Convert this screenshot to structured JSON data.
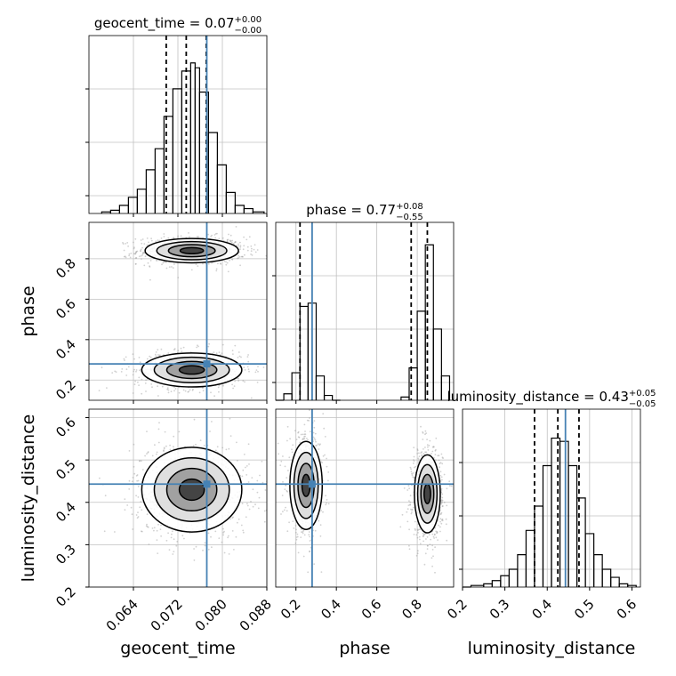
{
  "chart_data": {
    "type": "corner",
    "parameters": [
      "geocent_time",
      "phase",
      "luminosity_distance"
    ],
    "axis_labels": [
      "geocent_time",
      "phase",
      "luminosity_distance"
    ],
    "ranges": {
      "geocent_time": [
        0.056,
        0.088
      ],
      "phase": [
        0.1,
        0.98
      ],
      "luminosity_distance": [
        0.2,
        0.62
      ]
    },
    "ticks": {
      "geocent_time": [
        "0.064",
        "0.072",
        "0.080",
        "0.088"
      ],
      "phase_x": [
        "0.2",
        "0.4",
        "0.6",
        "0.8"
      ],
      "phase_y": [
        "0.2",
        "0.4",
        "0.6",
        "0.8"
      ],
      "luminosity_distance_x": [
        "0.2",
        "0.3",
        "0.4",
        "0.5",
        "0.6"
      ],
      "luminosity_distance_y": [
        "0.2",
        "0.3",
        "0.4",
        "0.5",
        "0.6"
      ]
    },
    "truths": {
      "geocent_time": 0.0772,
      "phase": 0.28,
      "luminosity_distance": 0.443
    },
    "diag_titles": {
      "geocent_time": {
        "prefix": "geocent_time = 0.07",
        "sup": "+0.00",
        "sub": "−0.00"
      },
      "phase": {
        "prefix": "phase = 0.77",
        "sup": "+0.08",
        "sub": "−0.55"
      },
      "luminosity_distance": {
        "prefix": "luminosity_distance = 0.43",
        "sup": "+0.05",
        "sub": "−0.05"
      }
    },
    "quantiles": {
      "geocent_time": [
        0.0699,
        0.0735,
        0.0771
      ],
      "phase": [
        0.22,
        0.77,
        0.85
      ],
      "luminosity_distance": [
        0.37,
        0.425,
        0.475
      ]
    },
    "histograms": {
      "geocent_time": [
        {
          "x0": 0.0583,
          "x1": 0.0599,
          "h": 0.01
        },
        {
          "x0": 0.0599,
          "x1": 0.0615,
          "h": 0.02
        },
        {
          "x0": 0.0615,
          "x1": 0.0631,
          "h": 0.05
        },
        {
          "x0": 0.0631,
          "x1": 0.0647,
          "h": 0.1
        },
        {
          "x0": 0.0647,
          "x1": 0.0663,
          "h": 0.15
        },
        {
          "x0": 0.0663,
          "x1": 0.0679,
          "h": 0.27
        },
        {
          "x0": 0.0679,
          "x1": 0.0695,
          "h": 0.4
        },
        {
          "x0": 0.0695,
          "x1": 0.0711,
          "h": 0.6
        },
        {
          "x0": 0.0711,
          "x1": 0.0727,
          "h": 0.77
        },
        {
          "x0": 0.0727,
          "x1": 0.0743,
          "h": 0.88
        },
        {
          "x0": 0.0743,
          "x1": 0.0751,
          "h": 0.93
        },
        {
          "x0": 0.0751,
          "x1": 0.0759,
          "h": 0.9
        },
        {
          "x0": 0.0759,
          "x1": 0.0775,
          "h": 0.75
        },
        {
          "x0": 0.0775,
          "x1": 0.0791,
          "h": 0.5
        },
        {
          "x0": 0.0791,
          "x1": 0.0807,
          "h": 0.3
        },
        {
          "x0": 0.0807,
          "x1": 0.0823,
          "h": 0.13
        },
        {
          "x0": 0.0823,
          "x1": 0.0839,
          "h": 0.05
        },
        {
          "x0": 0.0839,
          "x1": 0.0855,
          "h": 0.03
        },
        {
          "x0": 0.0855,
          "x1": 0.0875,
          "h": 0.01
        }
      ],
      "phase": [
        {
          "x0": 0.1,
          "x1": 0.14,
          "h": 0.0
        },
        {
          "x0": 0.14,
          "x1": 0.18,
          "h": 0.04
        },
        {
          "x0": 0.18,
          "x1": 0.22,
          "h": 0.17
        },
        {
          "x0": 0.22,
          "x1": 0.26,
          "h": 0.58
        },
        {
          "x0": 0.26,
          "x1": 0.3,
          "h": 0.6
        },
        {
          "x0": 0.3,
          "x1": 0.34,
          "h": 0.15
        },
        {
          "x0": 0.34,
          "x1": 0.38,
          "h": 0.03
        },
        {
          "x0": 0.38,
          "x1": 0.42,
          "h": 0.0
        },
        {
          "x0": 0.72,
          "x1": 0.76,
          "h": 0.02
        },
        {
          "x0": 0.76,
          "x1": 0.8,
          "h": 0.2
        },
        {
          "x0": 0.8,
          "x1": 0.84,
          "h": 0.55
        },
        {
          "x0": 0.84,
          "x1": 0.88,
          "h": 0.96
        },
        {
          "x0": 0.88,
          "x1": 0.92,
          "h": 0.44
        },
        {
          "x0": 0.92,
          "x1": 0.96,
          "h": 0.15
        }
      ],
      "luminosity_distance": [
        {
          "x0": 0.2,
          "x1": 0.22,
          "h": 0.0
        },
        {
          "x0": 0.22,
          "x1": 0.25,
          "h": 0.01
        },
        {
          "x0": 0.25,
          "x1": 0.27,
          "h": 0.02
        },
        {
          "x0": 0.27,
          "x1": 0.29,
          "h": 0.04
        },
        {
          "x0": 0.29,
          "x1": 0.31,
          "h": 0.07
        },
        {
          "x0": 0.31,
          "x1": 0.33,
          "h": 0.11
        },
        {
          "x0": 0.33,
          "x1": 0.35,
          "h": 0.2
        },
        {
          "x0": 0.35,
          "x1": 0.37,
          "h": 0.35
        },
        {
          "x0": 0.37,
          "x1": 0.39,
          "h": 0.5
        },
        {
          "x0": 0.39,
          "x1": 0.41,
          "h": 0.75
        },
        {
          "x0": 0.41,
          "x1": 0.43,
          "h": 0.92
        },
        {
          "x0": 0.43,
          "x1": 0.45,
          "h": 0.9
        },
        {
          "x0": 0.45,
          "x1": 0.47,
          "h": 0.75
        },
        {
          "x0": 0.47,
          "x1": 0.49,
          "h": 0.55
        },
        {
          "x0": 0.49,
          "x1": 0.51,
          "h": 0.33
        },
        {
          "x0": 0.51,
          "x1": 0.53,
          "h": 0.2
        },
        {
          "x0": 0.53,
          "x1": 0.55,
          "h": 0.11
        },
        {
          "x0": 0.55,
          "x1": 0.57,
          "h": 0.06
        },
        {
          "x0": 0.57,
          "x1": 0.59,
          "h": 0.02
        },
        {
          "x0": 0.59,
          "x1": 0.61,
          "h": 0.01
        }
      ]
    },
    "density_blobs": [
      {
        "px": "geocent_time",
        "py": "phase",
        "cx": 0.0745,
        "cy": 0.84,
        "sx": 0.0042,
        "sy": 0.03,
        "weight": 1.0
      },
      {
        "px": "geocent_time",
        "py": "phase",
        "cx": 0.0745,
        "cy": 0.25,
        "sx": 0.0045,
        "sy": 0.042,
        "weight": 0.8
      },
      {
        "px": "geocent_time",
        "py": "luminosity_distance",
        "cx": 0.0745,
        "cy": 0.43,
        "sx": 0.0045,
        "sy": 0.05,
        "weight": 1.0
      },
      {
        "px": "phase",
        "py": "luminosity_distance",
        "cx": 0.25,
        "cy": 0.44,
        "sx": 0.04,
        "sy": 0.052,
        "weight": 0.75
      },
      {
        "px": "phase",
        "py": "luminosity_distance",
        "cx": 0.85,
        "cy": 0.42,
        "sx": 0.032,
        "sy": 0.046,
        "weight": 1.0
      }
    ],
    "colors": {
      "truth": "#4682b4",
      "hist": "#000000",
      "grid": "#c0c0c0",
      "scatter": "#9a9a9a"
    },
    "grid": true
  }
}
